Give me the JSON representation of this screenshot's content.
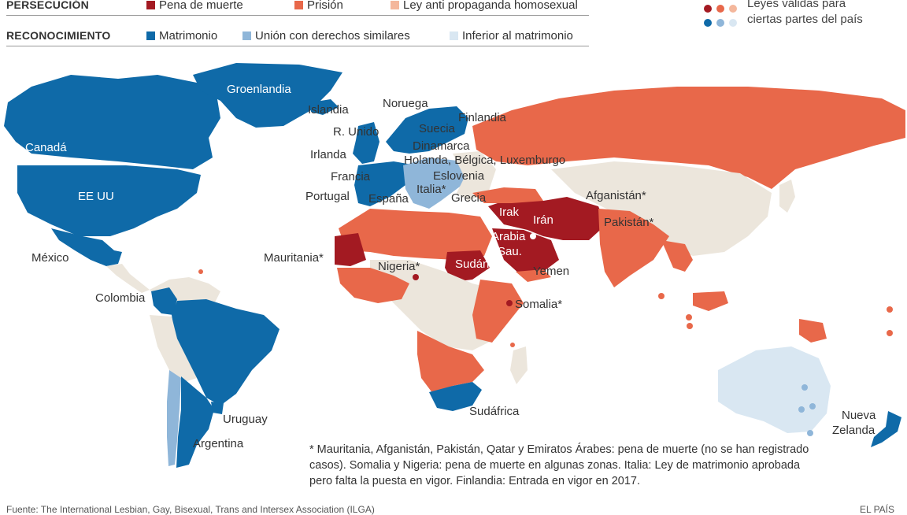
{
  "colors": {
    "death": "#a31a22",
    "prison": "#e8684a",
    "propaganda": "#f4b79c",
    "marriage": "#0f6aa8",
    "union": "#8fb6d9",
    "inferior": "#d9e7f2",
    "neutral": "#ece6dc"
  },
  "legend": {
    "persecution": {
      "heading": "PERSECUCIÓN",
      "items": [
        "Pena de muerte",
        "Prisión",
        "Ley anti propaganda homosexual"
      ]
    },
    "recognition": {
      "heading": "RECONOCIMIENTO",
      "items": [
        "Matrimonio",
        "Unión con derechos similares",
        "Inferior al matrimonio"
      ]
    },
    "partial": {
      "line1": "Leyes válidas para",
      "line2": "ciertas partes del país"
    }
  },
  "labels": {
    "groenlandia": "Groenlandia",
    "islandia": "Islandia",
    "noruega": "Noruega",
    "finlandia": "Finlandia",
    "suecia": "Suecia",
    "reino_unido": "R. Unido",
    "dinamarca": "Dinamarca",
    "irlanda": "Irlanda",
    "benelux": "Holanda, Bélgica, Luxemburgo",
    "francia": "Francia",
    "eslovenia": "Eslovenia",
    "italia": "Italia*",
    "portugal": "Portugal",
    "espana": "España",
    "grecia": "Grecia",
    "canada": "Canadá",
    "eeuu": "EE UU",
    "mexico": "México",
    "colombia": "Colombia",
    "uruguay": "Uruguay",
    "argentina": "Argentina",
    "mauritania": "Mauritania*",
    "nigeria": "Nigeria*",
    "sudan": "Sudán",
    "irak": "Irak",
    "iran": "Irán",
    "arabia1": "Arabia",
    "arabia2": "Sau.",
    "yemen": "Yemen",
    "afganistan": "Afganistán*",
    "pakistan": "Pakistán*",
    "somalia": "Somalia*",
    "sudafrica": "Sudáfrica",
    "nueva1": "Nueva",
    "nueva2": "Zelanda"
  },
  "note": "* Mauritania, Afganistán, Pakistán, Qatar y Emiratos Árabes: pena de muerte (no se han registrado casos). Somalia y Nigeria: pena de muerte en algunas zonas. Italia: Ley de matrimonio aprobada pero falta la puesta en vigor. Finlandia: Entrada en vigor en 2017.",
  "source": "Fuente: The International Lesbian, Gay, Bisexual, Trans and Intersex Association (ILGA)",
  "credit": "EL PAÍS"
}
